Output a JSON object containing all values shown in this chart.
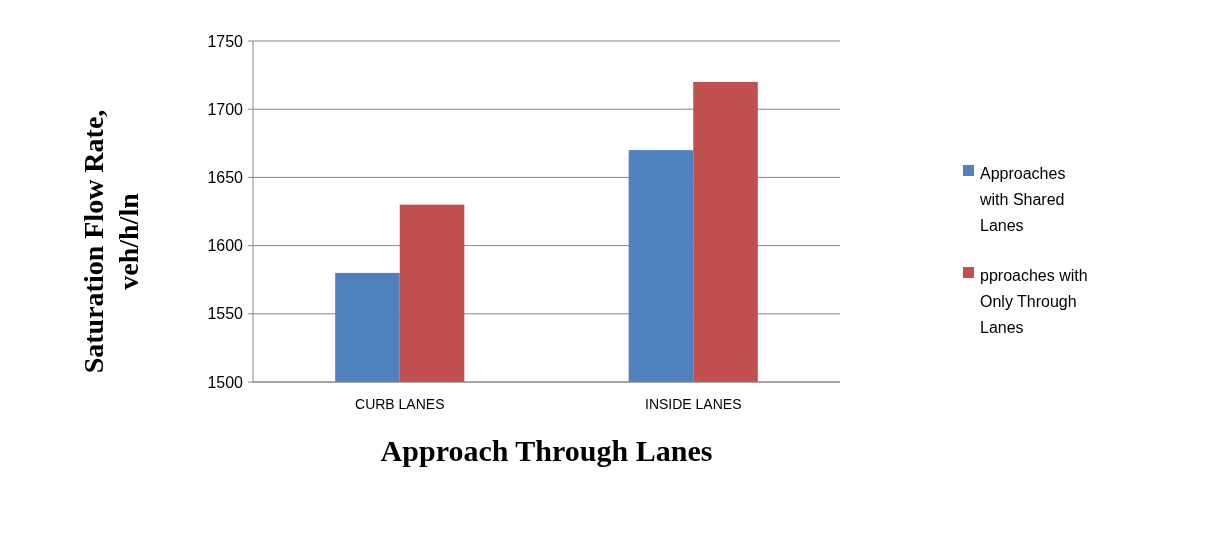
{
  "chart_data": {
    "type": "bar",
    "xlabel": "Approach Through Lanes",
    "ylabel": "Saturation Flow Rate, veh/h/ln",
    "categories": [
      "CURB LANES",
      "INSIDE LANES"
    ],
    "series": [
      {
        "name": "Approaches with Shared Lanes",
        "color": "#4f81bd",
        "values": [
          1580,
          1670
        ]
      },
      {
        "name": "pproaches with Only Through Lanes",
        "color": "#c0504d",
        "values": [
          1630,
          1720
        ]
      }
    ],
    "ylim": [
      1500,
      1750
    ],
    "yticks": [
      1500,
      1550,
      1600,
      1650,
      1700,
      1750
    ],
    "grid": "y",
    "legend": "right"
  }
}
